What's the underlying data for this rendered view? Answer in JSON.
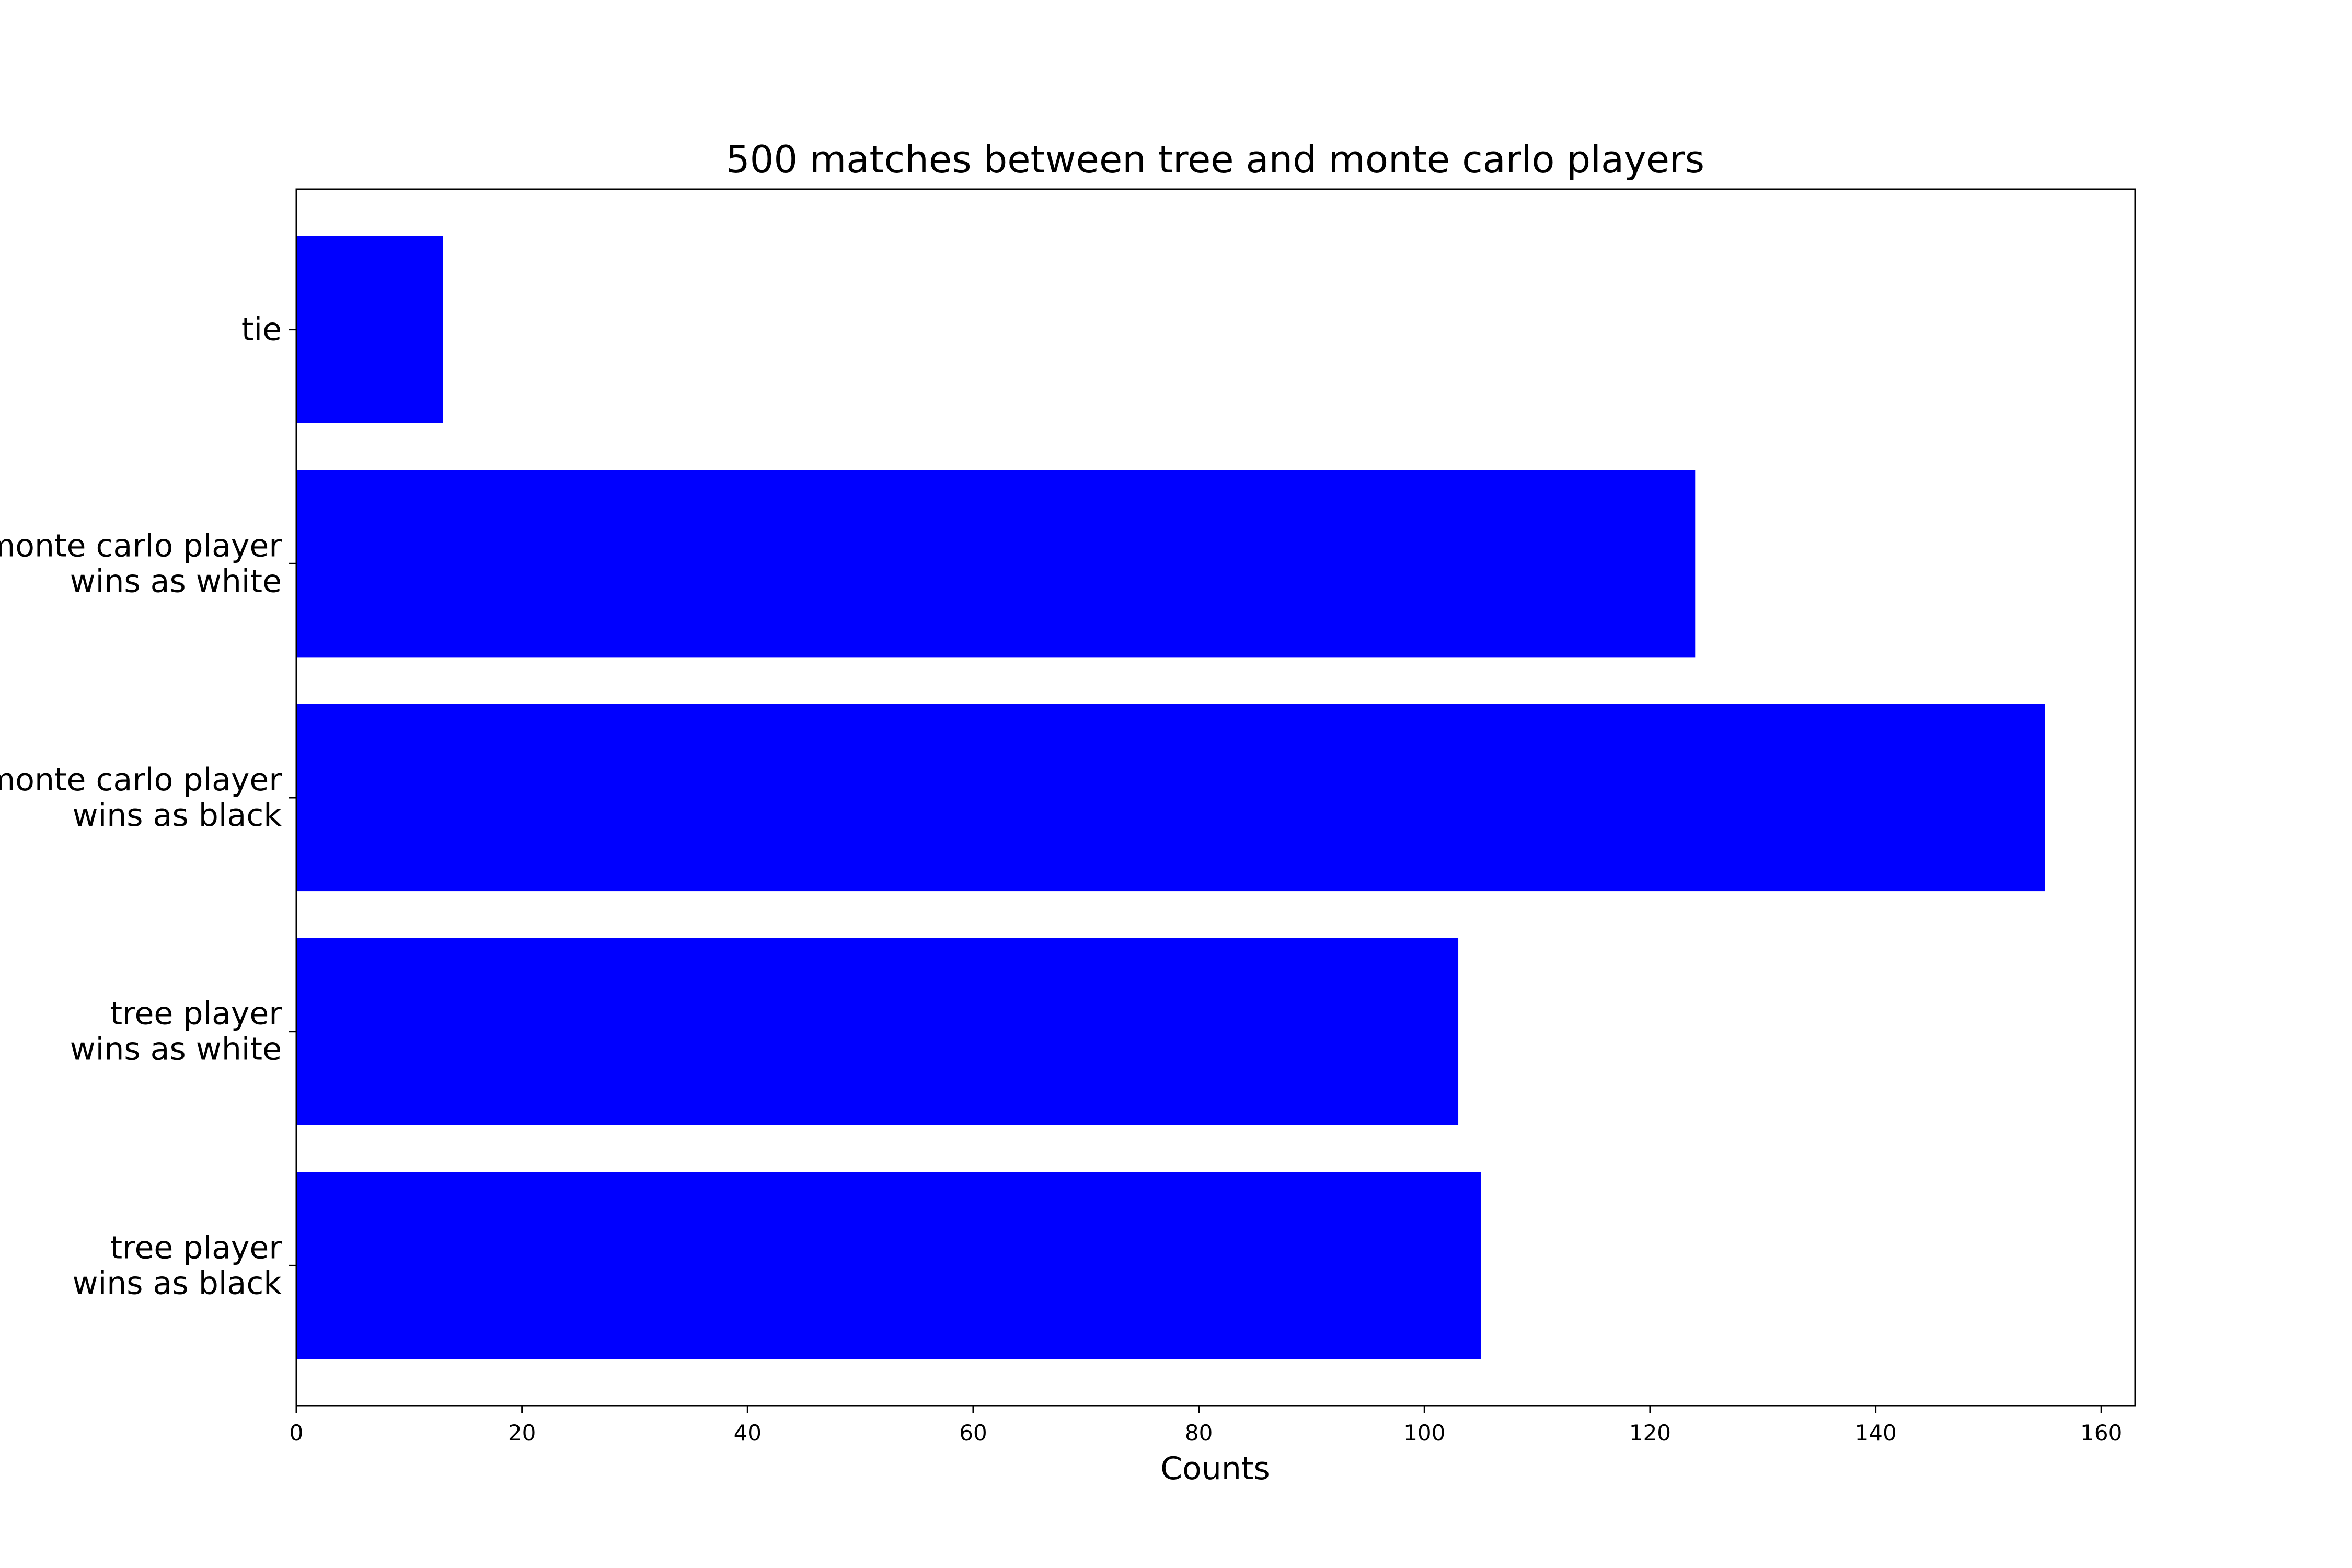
{
  "chart_data": {
    "type": "bar",
    "orientation": "horizontal",
    "title": "500 matches between tree and monte carlo players",
    "xlabel": "Counts",
    "ylabel": "",
    "categories": [
      "tree player\nwins as black",
      "tree player\nwins as white",
      "monte carlo player\nwins as black",
      "monte carlo player\nwins as white",
      "tie"
    ],
    "values": [
      105,
      103,
      155,
      124,
      13
    ],
    "xlim": [
      0,
      163
    ],
    "xticks": [
      0,
      20,
      40,
      60,
      80,
      100,
      120,
      140,
      160
    ],
    "bar_color": "#0000ff",
    "grid": false
  }
}
